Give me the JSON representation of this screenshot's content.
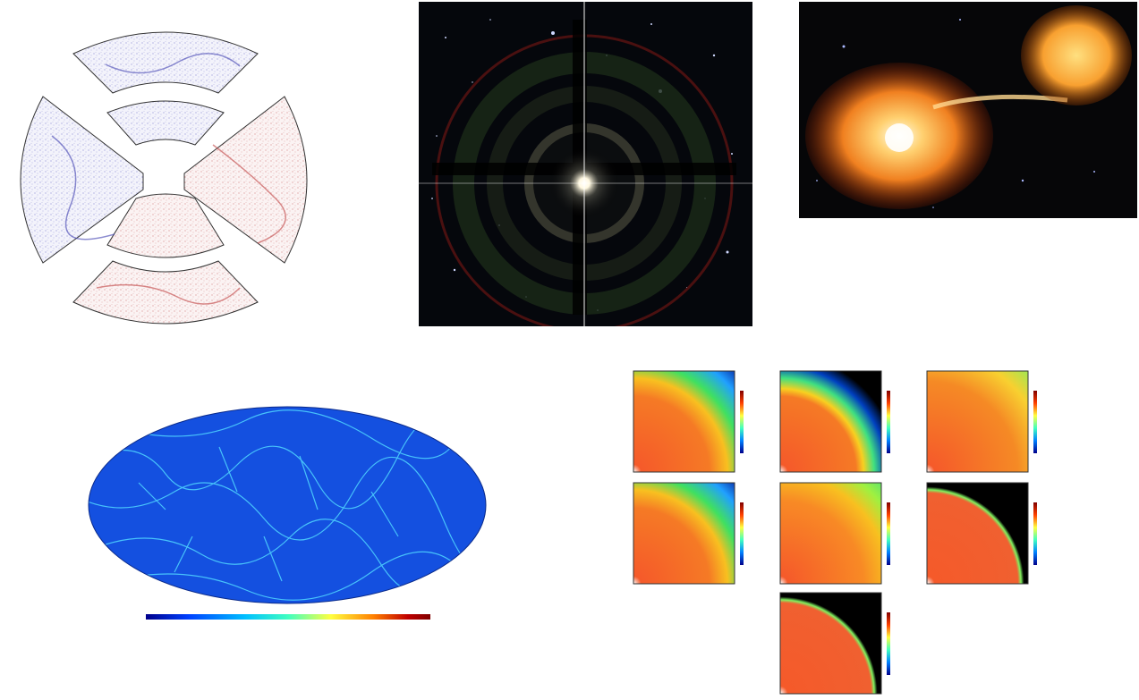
{
  "survey": {
    "sector_labels": [
      {
        "text": "",
        "color": "#3a3aa8"
      },
      {
        "text": "",
        "color": "#b03030"
      }
    ]
  },
  "skymap": {
    "min_label": "",
    "max_label": "",
    "colormap": [
      "#00008b",
      "#0040ff",
      "#00c0ff",
      "#40ffc0",
      "#ffff40",
      "#ff8000",
      "#c00000",
      "#800000"
    ]
  },
  "sims": {
    "panels": [
      {
        "label": "",
        "profile": "wide"
      },
      {
        "label": "",
        "profile": "narrow"
      },
      {
        "label": "",
        "profile": "full"
      },
      {
        "label": "",
        "profile": "wide"
      },
      {
        "label": "",
        "profile": "medium"
      },
      {
        "label": "",
        "profile": "sharp"
      },
      {
        "label": "",
        "profile": "sharp"
      }
    ]
  }
}
